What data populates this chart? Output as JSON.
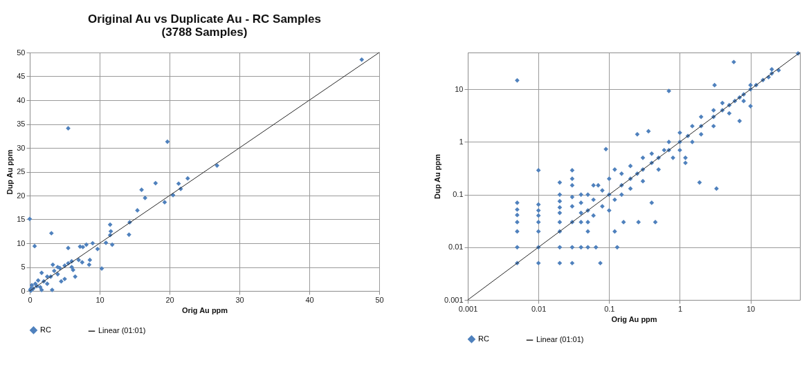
{
  "chart_data": [
    {
      "type": "scatter",
      "title": "Original Au vs Duplicate Au - RC Samples\n(3788 Samples)",
      "xlabel": "Orig Au ppm",
      "ylabel": "Dup Au ppm",
      "xlim": [
        0,
        50
      ],
      "ylim": [
        0,
        50
      ],
      "xticks": [
        0,
        10,
        20,
        30,
        40,
        50
      ],
      "yticks": [
        0,
        5,
        10,
        15,
        20,
        25,
        30,
        35,
        40,
        45,
        50
      ],
      "grid": true,
      "legend": "bottom",
      "series": [
        {
          "name": "RC",
          "type": "scatter",
          "marker": "diamond",
          "color": "#4f81bd",
          "x": [
            47.5,
            5.5,
            19.7,
            26.8,
            22.6,
            21.3,
            21.6,
            18,
            16,
            16.5,
            19.3,
            20.5,
            15.4,
            14.3,
            14.2,
            11.5,
            11.6,
            11.5,
            11.8,
            10.9,
            0,
            3.1,
            0.7,
            5.5,
            7.2,
            8.1,
            9,
            9.7,
            7.6,
            10.3,
            8.6,
            8.5,
            6.5,
            6.2,
            7.5,
            7,
            6,
            5,
            3.3,
            4,
            5,
            3.2,
            1.7,
            1.7,
            2,
            1,
            0.5,
            0.2,
            0.1,
            0.3,
            2.5,
            3,
            4,
            4.5,
            6,
            1.5,
            2.5,
            0.8,
            1.2,
            3.5,
            4.3,
            5.5,
            0.1,
            0.2
          ],
          "values": [
            48.5,
            34.1,
            31.3,
            26.3,
            23.6,
            22.5,
            21.4,
            22.6,
            21.2,
            19.5,
            18.6,
            20.1,
            16.9,
            14.4,
            11.8,
            13.9,
            12.5,
            11.7,
            9.7,
            10.1,
            15.1,
            12.1,
            9.4,
            9,
            9.3,
            9.7,
            10,
            8.8,
            9.2,
            4.7,
            6.5,
            5.5,
            3,
            4.4,
            6,
            6.5,
            6.2,
            5.3,
            5.5,
            5,
            2.5,
            0.2,
            0.2,
            3.8,
            2,
            1,
            0.5,
            0.1,
            0.3,
            1.2,
            1.5,
            3,
            3.5,
            2,
            5,
            0.8,
            3,
            1.5,
            2.2,
            4.2,
            4.8,
            5.8,
            0.1,
            0.5
          ]
        },
        {
          "name": "Linear (01:01)",
          "type": "line",
          "color": "#262626",
          "x": [
            0,
            50
          ],
          "values": [
            0,
            50
          ]
        }
      ]
    },
    {
      "type": "scatter",
      "xlabel": "Orig Au ppm",
      "ylabel": "Dup Au ppm",
      "log": "xy",
      "xlim": [
        0.001,
        50
      ],
      "ylim": [
        0.001,
        50
      ],
      "xticks": [
        0.001,
        0.01,
        0.1,
        1,
        10
      ],
      "yticks": [
        0.001,
        0.01,
        0.1,
        1,
        10
      ],
      "grid": true,
      "legend": "bottom",
      "series": [
        {
          "name": "RC",
          "type": "scatter",
          "marker": "diamond",
          "color": "#4f81bd",
          "x": [
            0.005,
            0.005,
            0.005,
            0.005,
            0.005,
            0.005,
            0.005,
            0.005,
            0.01,
            0.01,
            0.01,
            0.01,
            0.01,
            0.01,
            0.01,
            0.01,
            0.02,
            0.02,
            0.02,
            0.02,
            0.02,
            0.02,
            0.02,
            0.02,
            0.02,
            0.03,
            0.03,
            0.03,
            0.03,
            0.03,
            0.03,
            0.03,
            0.03,
            0.04,
            0.04,
            0.04,
            0.04,
            0.04,
            0.05,
            0.05,
            0.05,
            0.05,
            0.05,
            0.06,
            0.06,
            0.06,
            0.065,
            0.075,
            0.07,
            0.08,
            0.08,
            0.09,
            0.1,
            0.1,
            0.1,
            0.12,
            0.12,
            0.12,
            0.13,
            0.15,
            0.15,
            0.15,
            0.16,
            0.2,
            0.2,
            0.2,
            0.25,
            0.25,
            0.26,
            0.3,
            0.3,
            0.3,
            0.36,
            0.4,
            0.4,
            0.4,
            0.45,
            0.5,
            0.5,
            0.6,
            0.7,
            0.7,
            0.7,
            0.8,
            1,
            1,
            1,
            1.2,
            1.2,
            1.3,
            1.5,
            1.5,
            1.9,
            2,
            2,
            2,
            3,
            3,
            3,
            3.1,
            3.3,
            4,
            4,
            5,
            5,
            5.8,
            6,
            7,
            7,
            8,
            8,
            10,
            10,
            10,
            12,
            15,
            18,
            20,
            20,
            25,
            47
          ],
          "values": [
            14.8,
            0.07,
            0.052,
            0.041,
            0.03,
            0.02,
            0.01,
            0.005,
            0.29,
            0.065,
            0.05,
            0.04,
            0.03,
            0.02,
            0.01,
            0.005,
            0.17,
            0.1,
            0.075,
            0.057,
            0.045,
            0.03,
            0.02,
            0.01,
            0.005,
            0.29,
            0.2,
            0.15,
            0.09,
            0.06,
            0.03,
            0.01,
            0.005,
            0.1,
            0.07,
            0.045,
            0.03,
            0.01,
            0.03,
            0.02,
            0.01,
            0.05,
            0.1,
            0.08,
            0.04,
            0.15,
            0.01,
            0.005,
            0.15,
            0.06,
            0.12,
            0.73,
            0.1,
            0.2,
            0.05,
            0.3,
            0.08,
            0.02,
            0.01,
            0.15,
            0.25,
            0.1,
            0.03,
            0.2,
            0.35,
            0.13,
            0.25,
            1.4,
            0.03,
            0.3,
            0.5,
            0.18,
            1.6,
            0.4,
            0.6,
            0.07,
            0.03,
            0.5,
            0.3,
            0.7,
            0.7,
            1,
            9.3,
            0.5,
            1,
            1.5,
            0.7,
            0.5,
            0.4,
            1.3,
            2,
            1,
            0.17,
            2,
            3,
            1.4,
            3,
            4,
            2,
            12,
            0.13,
            4,
            5.5,
            5,
            3.5,
            33,
            6,
            7,
            2.5,
            8,
            6,
            10,
            12,
            4.8,
            12,
            15,
            17,
            20,
            24,
            23,
            48
          ]
        },
        {
          "name": "Linear (01:01)",
          "type": "line",
          "color": "#262626",
          "x": [
            0.001,
            50
          ],
          "values": [
            0.001,
            50
          ]
        }
      ]
    }
  ]
}
